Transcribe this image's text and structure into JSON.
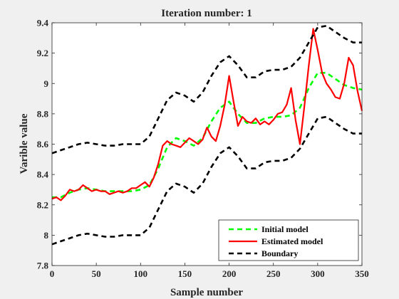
{
  "chart_data": {
    "type": "line",
    "title": "Iteration number: 1",
    "xlabel": "Sample number",
    "ylabel": "Varible value",
    "xlim": [
      0,
      350
    ],
    "ylim": [
      7.8,
      9.4
    ],
    "x_ticks": [
      0,
      50,
      100,
      150,
      200,
      250,
      300,
      350
    ],
    "x_tick_labels": [
      "0",
      "50",
      "100",
      "150",
      "200",
      "250",
      "300",
      "350"
    ],
    "y_ticks": [
      7.8,
      8,
      8.2,
      8.4,
      8.6,
      8.8,
      9,
      9.2,
      9.4
    ],
    "y_tick_labels": [
      "7.8",
      "8",
      "8.2",
      "8.4",
      "8.6",
      "8.8",
      "9",
      "9.2",
      "9.4"
    ],
    "grid": false,
    "legend_position": "bottom-right",
    "series": [
      {
        "name": "Initial model",
        "color": "#00ff00",
        "style": "dashed",
        "x": [
          0,
          10,
          20,
          30,
          40,
          50,
          60,
          70,
          80,
          90,
          100,
          110,
          120,
          130,
          140,
          150,
          160,
          170,
          180,
          190,
          200,
          210,
          220,
          230,
          240,
          250,
          260,
          270,
          280,
          290,
          300,
          310,
          320,
          330,
          340,
          350
        ],
        "y": [
          8.25,
          8.25,
          8.28,
          8.3,
          8.31,
          8.3,
          8.29,
          8.29,
          8.29,
          8.29,
          8.3,
          8.33,
          8.44,
          8.58,
          8.64,
          8.62,
          8.59,
          8.64,
          8.75,
          8.84,
          8.88,
          8.8,
          8.74,
          8.74,
          8.77,
          8.78,
          8.78,
          8.79,
          8.84,
          8.97,
          9.07,
          9.07,
          9.03,
          8.99,
          8.97,
          8.96
        ]
      },
      {
        "name": "Estimated model",
        "color": "#ff0000",
        "style": "solid",
        "x": [
          0,
          5,
          10,
          15,
          20,
          25,
          30,
          35,
          40,
          45,
          50,
          55,
          60,
          65,
          70,
          75,
          80,
          85,
          90,
          95,
          100,
          105,
          110,
          115,
          120,
          125,
          130,
          135,
          140,
          145,
          150,
          155,
          160,
          165,
          170,
          175,
          180,
          185,
          190,
          195,
          200,
          205,
          210,
          215,
          220,
          225,
          230,
          235,
          240,
          245,
          250,
          255,
          260,
          265,
          270,
          275,
          280,
          285,
          290,
          295,
          300,
          305,
          310,
          315,
          320,
          325,
          330,
          335,
          340,
          345,
          350
        ],
        "y": [
          8.24,
          8.25,
          8.23,
          8.26,
          8.3,
          8.29,
          8.3,
          8.33,
          8.31,
          8.29,
          8.3,
          8.29,
          8.29,
          8.27,
          8.28,
          8.29,
          8.28,
          8.29,
          8.31,
          8.31,
          8.33,
          8.35,
          8.32,
          8.38,
          8.47,
          8.59,
          8.62,
          8.6,
          8.59,
          8.58,
          8.61,
          8.64,
          8.62,
          8.6,
          8.63,
          8.71,
          8.65,
          8.62,
          8.72,
          8.86,
          9.05,
          8.88,
          8.72,
          8.78,
          8.75,
          8.74,
          8.77,
          8.73,
          8.75,
          8.73,
          8.76,
          8.8,
          8.81,
          8.86,
          8.97,
          8.76,
          8.6,
          8.85,
          9.12,
          9.36,
          9.22,
          9.07,
          9.0,
          8.96,
          8.91,
          8.9,
          9.0,
          9.17,
          9.12,
          8.95,
          8.82
        ]
      },
      {
        "name": "Boundary",
        "color": "#000000",
        "style": "dashed",
        "x": [
          0,
          10,
          20,
          30,
          40,
          50,
          60,
          70,
          80,
          90,
          100,
          110,
          120,
          130,
          140,
          150,
          160,
          170,
          180,
          190,
          200,
          210,
          220,
          230,
          240,
          250,
          260,
          270,
          280,
          290,
          300,
          310,
          320,
          330,
          340,
          350
        ],
        "y": [
          8.54,
          8.56,
          8.58,
          8.6,
          8.61,
          8.6,
          8.59,
          8.59,
          8.6,
          8.6,
          8.6,
          8.65,
          8.77,
          8.89,
          8.94,
          8.92,
          8.88,
          8.94,
          9.05,
          9.14,
          9.18,
          9.12,
          9.04,
          9.04,
          9.08,
          9.09,
          9.09,
          9.11,
          9.17,
          9.27,
          9.37,
          9.38,
          9.34,
          9.3,
          9.27,
          9.27
        ]
      },
      {
        "name": "",
        "color": "#000000",
        "style": "dashed",
        "x": [
          0,
          10,
          20,
          30,
          40,
          50,
          60,
          70,
          80,
          90,
          100,
          110,
          120,
          130,
          140,
          150,
          160,
          170,
          180,
          190,
          200,
          210,
          220,
          230,
          240,
          250,
          260,
          270,
          280,
          290,
          300,
          310,
          320,
          330,
          340,
          350
        ],
        "y": [
          7.94,
          7.96,
          7.98,
          8.0,
          8.01,
          8.0,
          7.99,
          7.99,
          8.0,
          8.0,
          8.0,
          8.05,
          8.17,
          8.29,
          8.34,
          8.32,
          8.28,
          8.34,
          8.45,
          8.54,
          8.58,
          8.52,
          8.44,
          8.44,
          8.48,
          8.49,
          8.49,
          8.51,
          8.57,
          8.67,
          8.77,
          8.78,
          8.74,
          8.7,
          8.67,
          8.67
        ]
      }
    ]
  }
}
